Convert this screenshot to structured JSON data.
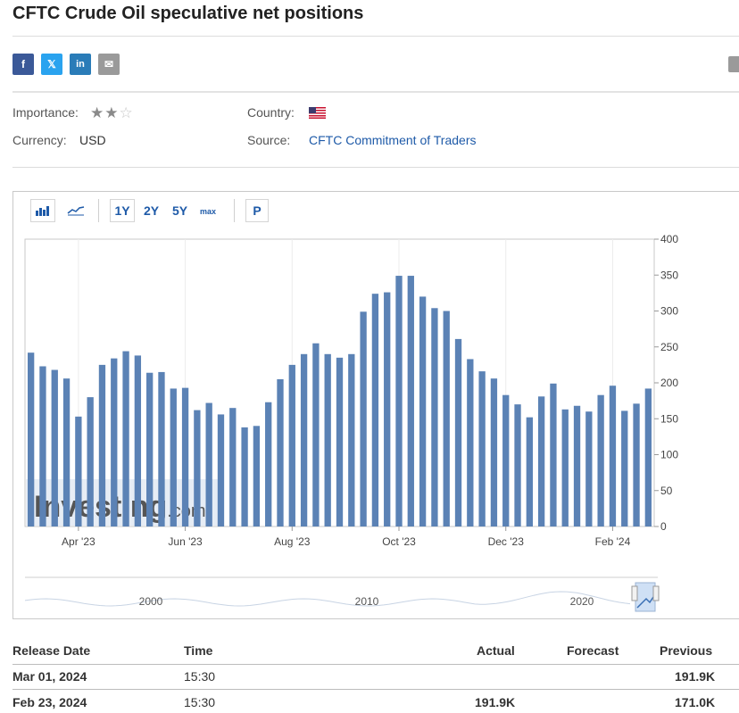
{
  "page": {
    "title": "CFTC Crude Oil speculative net positions"
  },
  "share": [
    {
      "icon": "facebook-icon",
      "glyph": "f",
      "color": "#3b5998"
    },
    {
      "icon": "twitter-icon",
      "glyph": "𝕏",
      "color": "#2aa3ef"
    },
    {
      "icon": "linkedin-icon",
      "glyph": "in",
      "color": "#2a7cb8"
    },
    {
      "icon": "email-icon",
      "glyph": "✉",
      "color": "#9a9a9a"
    }
  ],
  "info": {
    "importance_label": "Importance:",
    "importance_stars": 2,
    "importance_max": 3,
    "country_label": "Country:",
    "country_flag_icon": "us-flag-icon",
    "currency_label": "Currency:",
    "currency_value": "USD",
    "source_label": "Source:",
    "source_value": "CFTC Commitment of Traders"
  },
  "toolbar": {
    "bar_chart_icon": "bar-chart-icon",
    "line_chart_icon": "line-chart-icon",
    "ranges": [
      "1Y",
      "2Y",
      "5Y",
      "max"
    ],
    "selected_range": "1Y",
    "p_label": "P"
  },
  "chart_data": {
    "type": "bar",
    "title": "",
    "xlabel": "",
    "ylabel": "",
    "ylim": [
      0,
      400
    ],
    "yticks": [
      0,
      50,
      100,
      150,
      200,
      250,
      300,
      350,
      400
    ],
    "y_axis_side": "right",
    "grid": true,
    "bar_color": "#5b82b5",
    "values": [
      242,
      223,
      218,
      206,
      153,
      180,
      225,
      234,
      244,
      238,
      214,
      215,
      192,
      193,
      162,
      172,
      156,
      165,
      138,
      140,
      173,
      205,
      225,
      240,
      255,
      240,
      235,
      240,
      299,
      324,
      326,
      349,
      349,
      320,
      304,
      300,
      261,
      233,
      216,
      206,
      183,
      170,
      152,
      181,
      199,
      163,
      168,
      160,
      183,
      196,
      161,
      171,
      192
    ],
    "x_tick_labels": [
      "Apr '23",
      "Jun '23",
      "Aug '23",
      "Oct '23",
      "Dec '23",
      "Feb '24"
    ],
    "x_tick_bar_index": [
      4,
      13,
      22,
      31,
      40,
      49
    ],
    "watermark": "Investing.com"
  },
  "navigator": {
    "labels": [
      "2000",
      "2010",
      "2020"
    ]
  },
  "table": {
    "headers": {
      "release_date": "Release Date",
      "time": "Time",
      "actual": "Actual",
      "forecast": "Forecast",
      "previous": "Previous"
    },
    "rows": [
      {
        "release_date": "Mar 01, 2024",
        "time": "15:30",
        "actual": "",
        "forecast": "",
        "previous": "191.9K"
      },
      {
        "release_date": "Feb 23, 2024",
        "time": "15:30",
        "actual": "191.9K",
        "forecast": "",
        "previous": "171.0K"
      }
    ]
  }
}
